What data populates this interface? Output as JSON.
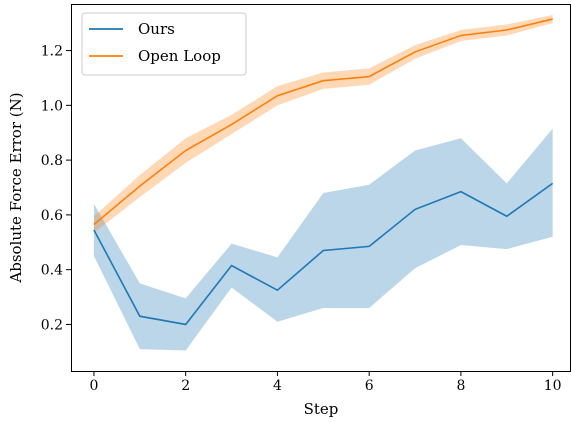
{
  "chart_data": {
    "type": "line",
    "title": "",
    "xlabel": "Step",
    "ylabel": "Absolute Force Error (N)",
    "xlim": [
      -0.5,
      10.4
    ],
    "ylim": [
      0.03,
      1.37
    ],
    "x_ticks": [
      "0",
      "2",
      "4",
      "6",
      "8",
      "10"
    ],
    "y_ticks": [
      "0.2",
      "0.4",
      "0.6",
      "0.8",
      "1.0",
      "1.2"
    ],
    "grid": false,
    "legend_position": "upper-left",
    "x": [
      0,
      1,
      2,
      3,
      4,
      5,
      6,
      7,
      8,
      9,
      10
    ],
    "series": [
      {
        "name": "Ours",
        "color": "#1f77b4",
        "values": [
          0.545,
          0.23,
          0.2,
          0.415,
          0.325,
          0.47,
          0.485,
          0.62,
          0.685,
          0.595,
          0.715
        ],
        "lower": [
          0.45,
          0.11,
          0.105,
          0.335,
          0.21,
          0.26,
          0.26,
          0.405,
          0.49,
          0.475,
          0.52
        ],
        "upper": [
          0.64,
          0.35,
          0.295,
          0.495,
          0.445,
          0.68,
          0.71,
          0.835,
          0.88,
          0.715,
          0.915
        ]
      },
      {
        "name": "Open Loop",
        "color": "#ff7f0e",
        "values": [
          0.565,
          0.705,
          0.835,
          0.93,
          1.035,
          1.09,
          1.105,
          1.195,
          1.255,
          1.275,
          1.315
        ],
        "lower": [
          0.535,
          0.665,
          0.79,
          0.895,
          1.0,
          1.06,
          1.075,
          1.17,
          1.235,
          1.255,
          1.3
        ],
        "upper": [
          0.595,
          0.745,
          0.88,
          0.965,
          1.07,
          1.12,
          1.135,
          1.22,
          1.275,
          1.295,
          1.33
        ]
      }
    ]
  }
}
